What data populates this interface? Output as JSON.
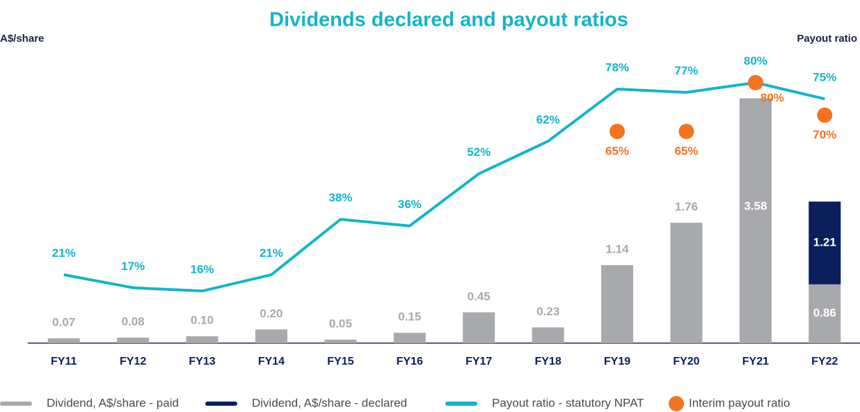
{
  "chart_data": {
    "type": "bar-line",
    "title": "Dividends declared and payout ratios",
    "y_label": "A$/share",
    "y2_label": "Payout ratio",
    "categories": [
      "FY11",
      "FY12",
      "FY13",
      "FY14",
      "FY15",
      "FY16",
      "FY17",
      "FY18",
      "FY19",
      "FY20",
      "FY21",
      "FY22"
    ],
    "ylim": [
      0,
      4
    ],
    "y2lim": [
      0,
      84
    ],
    "inside_labels": [
      10,
      11
    ],
    "series": [
      {
        "name": "Dividend, A$/share - paid",
        "type": "bar",
        "color": "#a7a9ac",
        "values": [
          0.07,
          0.08,
          0.1,
          0.2,
          0.05,
          0.15,
          0.45,
          0.23,
          1.14,
          1.76,
          3.58,
          0.86
        ],
        "value_labels": [
          "0.07",
          "0.08",
          "0.10",
          "0.20",
          "0.05",
          "0.15",
          "0.45",
          "0.23",
          "1.14",
          "1.76",
          "3.58",
          "0.86"
        ]
      },
      {
        "name": "Dividend, A$/share - declared",
        "type": "bar",
        "color": "#0a1f5c",
        "values": [
          null,
          null,
          null,
          null,
          null,
          null,
          null,
          null,
          null,
          null,
          null,
          1.21
        ],
        "value_labels": [
          null,
          null,
          null,
          null,
          null,
          null,
          null,
          null,
          null,
          null,
          null,
          "1.21"
        ]
      },
      {
        "name": "Payout ratio - statutory NPAT",
        "type": "line",
        "axis": "y2",
        "color": "#12b5cb",
        "values": [
          21,
          17,
          16,
          21,
          38,
          36,
          52,
          62,
          78,
          77,
          80,
          75
        ],
        "value_labels": [
          "21%",
          "17%",
          "16%",
          "21%",
          "38%",
          "36%",
          "52%",
          "62%",
          "78%",
          "77%",
          "80%",
          "75%"
        ]
      },
      {
        "name": "Interim payout ratio",
        "type": "scatter",
        "axis": "y2",
        "color": "#f47321",
        "values": [
          null,
          null,
          null,
          null,
          null,
          null,
          null,
          null,
          65,
          65,
          80,
          70
        ],
        "value_labels": [
          null,
          null,
          null,
          null,
          null,
          null,
          null,
          null,
          "65%",
          "65%",
          "80%",
          "70%"
        ]
      }
    ]
  }
}
